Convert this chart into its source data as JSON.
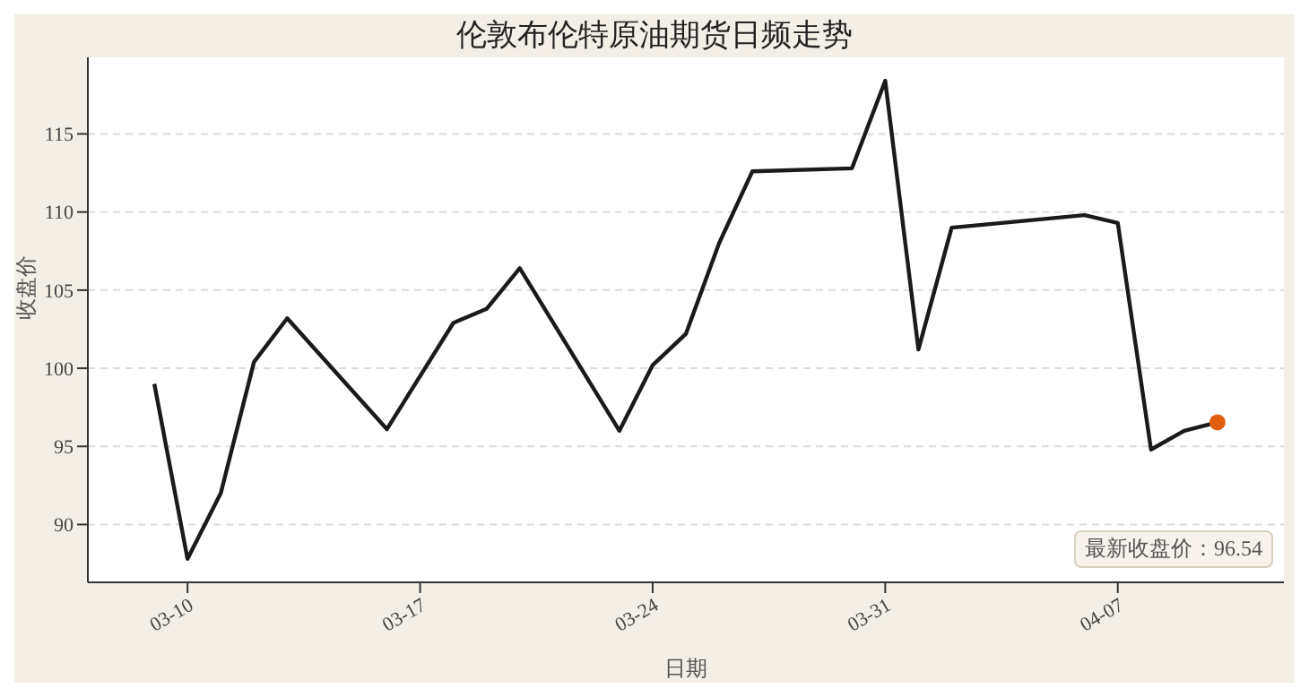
{
  "chart_data": {
    "type": "line",
    "title": "伦敦布伦特原油期货日频走势",
    "xlabel": "日期",
    "ylabel": "收盘价",
    "x": [
      "--03-09",
      "--03-10",
      "--03-11",
      "--03-12",
      "--03-13",
      "--03-16",
      "--03-18",
      "--03-19",
      "--03-20",
      "--03-23",
      "--03-24",
      "--03-25",
      "--03-26",
      "--03-27",
      "--03-30",
      "--03-31",
      "--04-01",
      "--04-02",
      "--04-06",
      "--04-07",
      "--04-08",
      "--04-09",
      "--04-10"
    ],
    "series": [
      {
        "type": "line",
        "color": "#1a1a1a",
        "marker": "none",
        "values": [
          99.0,
          87.8,
          92.0,
          100.4,
          103.2,
          96.1,
          102.9,
          103.8,
          106.4,
          96.0,
          100.2,
          102.2,
          108.0,
          112.6,
          112.8,
          118.4,
          101.2,
          109.0,
          109.8,
          109.3,
          94.8,
          96.0,
          96.54
        ]
      },
      {
        "type": "scatter",
        "color": "#e0600f",
        "marker": "circle",
        "x": [
          "--04-10"
        ],
        "values": [
          96.54
        ]
      }
    ],
    "xlim": [
      "--03-07",
      "--04-12"
    ],
    "xticks": [
      {
        "value": "--03-10",
        "label": "03-10"
      },
      {
        "value": "--03-17",
        "label": "03-17"
      },
      {
        "value": "--03-24",
        "label": "03-24"
      },
      {
        "value": "--03-31",
        "label": "03-31"
      },
      {
        "value": "--04-07",
        "label": "04-07"
      }
    ],
    "ylim": [
      86.3,
      119.9
    ],
    "yticks": [
      90,
      95,
      100,
      105,
      110,
      115
    ],
    "grid": "y",
    "annotations": [
      "最新收盘价：96.54"
    ]
  }
}
